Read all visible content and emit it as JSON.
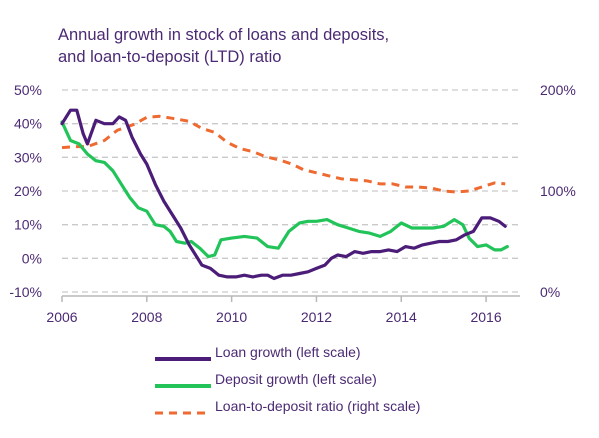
{
  "chart_data": {
    "type": "line",
    "title": "Annual growth in stock of loans and deposits, and loan-to-deposit (LTD) ratio",
    "title_lines": [
      "Annual growth in stock of loans and deposits,",
      "and loan-to-deposit (LTD) ratio"
    ],
    "x_ticks": [
      "2006",
      "2008",
      "2010",
      "2012",
      "2014",
      "2016"
    ],
    "x_range": [
      2006,
      2016.8
    ],
    "y_left": {
      "range": [
        -10,
        50
      ],
      "ticks": [
        "-10%",
        "0%",
        "10%",
        "20%",
        "30%",
        "40%",
        "50%"
      ]
    },
    "y_right": {
      "range": [
        0,
        200
      ],
      "ticks": [
        "0%",
        "100%",
        "200%"
      ]
    },
    "grid": true,
    "legend_position": "bottom",
    "series": [
      {
        "name": "Loan growth (left scale)",
        "axis": "left",
        "color": "#4b1d78",
        "dash": "solid",
        "points": [
          [
            2006.0,
            40
          ],
          [
            2006.2,
            44
          ],
          [
            2006.35,
            44
          ],
          [
            2006.5,
            37
          ],
          [
            2006.6,
            34
          ],
          [
            2006.8,
            41
          ],
          [
            2007.0,
            40
          ],
          [
            2007.2,
            40
          ],
          [
            2007.35,
            42
          ],
          [
            2007.5,
            41
          ],
          [
            2007.65,
            36
          ],
          [
            2007.85,
            31
          ],
          [
            2008.0,
            28
          ],
          [
            2008.2,
            22
          ],
          [
            2008.4,
            17
          ],
          [
            2008.6,
            13
          ],
          [
            2008.8,
            9
          ],
          [
            2009.0,
            4
          ],
          [
            2009.15,
            1
          ],
          [
            2009.3,
            -2
          ],
          [
            2009.5,
            -3
          ],
          [
            2009.7,
            -5
          ],
          [
            2009.9,
            -5.5
          ],
          [
            2010.1,
            -5.5
          ],
          [
            2010.3,
            -5
          ],
          [
            2010.5,
            -5.5
          ],
          [
            2010.7,
            -5
          ],
          [
            2010.85,
            -5
          ],
          [
            2011.0,
            -6
          ],
          [
            2011.2,
            -5
          ],
          [
            2011.4,
            -5
          ],
          [
            2011.6,
            -4.5
          ],
          [
            2011.8,
            -4
          ],
          [
            2012.0,
            -3
          ],
          [
            2012.2,
            -2
          ],
          [
            2012.35,
            0
          ],
          [
            2012.5,
            1
          ],
          [
            2012.7,
            0.5
          ],
          [
            2012.9,
            2
          ],
          [
            2013.1,
            1.5
          ],
          [
            2013.3,
            2
          ],
          [
            2013.5,
            2
          ],
          [
            2013.7,
            2.5
          ],
          [
            2013.9,
            2
          ],
          [
            2014.1,
            3.5
          ],
          [
            2014.3,
            3
          ],
          [
            2014.5,
            4
          ],
          [
            2014.7,
            4.5
          ],
          [
            2014.9,
            5
          ],
          [
            2015.1,
            5
          ],
          [
            2015.3,
            5.5
          ],
          [
            2015.5,
            7
          ],
          [
            2015.7,
            8
          ],
          [
            2015.9,
            12
          ],
          [
            2016.1,
            12
          ],
          [
            2016.3,
            11
          ],
          [
            2016.45,
            9.5
          ]
        ]
      },
      {
        "name": "Deposit growth (left scale)",
        "axis": "left",
        "color": "#22c45a",
        "dash": "solid",
        "points": [
          [
            2006.0,
            40.5
          ],
          [
            2006.2,
            35
          ],
          [
            2006.4,
            34
          ],
          [
            2006.6,
            31
          ],
          [
            2006.8,
            29
          ],
          [
            2007.0,
            28.5
          ],
          [
            2007.2,
            26
          ],
          [
            2007.4,
            22
          ],
          [
            2007.6,
            18
          ],
          [
            2007.8,
            15
          ],
          [
            2008.0,
            14
          ],
          [
            2008.2,
            10
          ],
          [
            2008.4,
            9.5
          ],
          [
            2008.55,
            8
          ],
          [
            2008.7,
            5
          ],
          [
            2008.9,
            4.5
          ],
          [
            2009.05,
            5
          ],
          [
            2009.25,
            3
          ],
          [
            2009.45,
            0.5
          ],
          [
            2009.6,
            1
          ],
          [
            2009.75,
            5.5
          ],
          [
            2010.0,
            6
          ],
          [
            2010.3,
            6.5
          ],
          [
            2010.6,
            6
          ],
          [
            2010.85,
            3.5
          ],
          [
            2011.1,
            3
          ],
          [
            2011.35,
            8
          ],
          [
            2011.6,
            10.5
          ],
          [
            2011.8,
            11
          ],
          [
            2012.0,
            11
          ],
          [
            2012.25,
            11.5
          ],
          [
            2012.5,
            10
          ],
          [
            2012.75,
            9
          ],
          [
            2013.0,
            8
          ],
          [
            2013.25,
            7.5
          ],
          [
            2013.5,
            6.5
          ],
          [
            2013.75,
            8
          ],
          [
            2014.0,
            10.5
          ],
          [
            2014.25,
            9
          ],
          [
            2014.5,
            9
          ],
          [
            2014.75,
            9
          ],
          [
            2015.0,
            9.5
          ],
          [
            2015.25,
            11.5
          ],
          [
            2015.45,
            10
          ],
          [
            2015.6,
            6
          ],
          [
            2015.8,
            3.5
          ],
          [
            2016.0,
            4
          ],
          [
            2016.2,
            2.5
          ],
          [
            2016.35,
            2.5
          ],
          [
            2016.5,
            3.5
          ]
        ]
      },
      {
        "name": "Loan-to-deposit ratio (right scale)",
        "axis": "right",
        "color": "#ee6a30",
        "dash": "dashed",
        "points": [
          [
            2006.0,
            143
          ],
          [
            2006.3,
            144
          ],
          [
            2006.6,
            144
          ],
          [
            2007.0,
            150
          ],
          [
            2007.3,
            160
          ],
          [
            2007.7,
            166
          ],
          [
            2008.0,
            173
          ],
          [
            2008.3,
            174
          ],
          [
            2008.6,
            172
          ],
          [
            2009.0,
            169
          ],
          [
            2009.3,
            162
          ],
          [
            2009.6,
            158
          ],
          [
            2009.9,
            148
          ],
          [
            2010.2,
            142
          ],
          [
            2010.5,
            139
          ],
          [
            2010.8,
            134
          ],
          [
            2011.1,
            131
          ],
          [
            2011.4,
            127
          ],
          [
            2011.7,
            121
          ],
          [
            2012.0,
            118
          ],
          [
            2012.3,
            115
          ],
          [
            2012.6,
            112
          ],
          [
            2012.9,
            111
          ],
          [
            2013.2,
            110
          ],
          [
            2013.5,
            107
          ],
          [
            2013.8,
            107
          ],
          [
            2014.1,
            104
          ],
          [
            2014.4,
            104
          ],
          [
            2014.7,
            103
          ],
          [
            2015.0,
            100
          ],
          [
            2015.3,
            99
          ],
          [
            2015.6,
            100
          ],
          [
            2015.9,
            104
          ],
          [
            2016.2,
            108
          ],
          [
            2016.45,
            107
          ]
        ]
      }
    ]
  }
}
